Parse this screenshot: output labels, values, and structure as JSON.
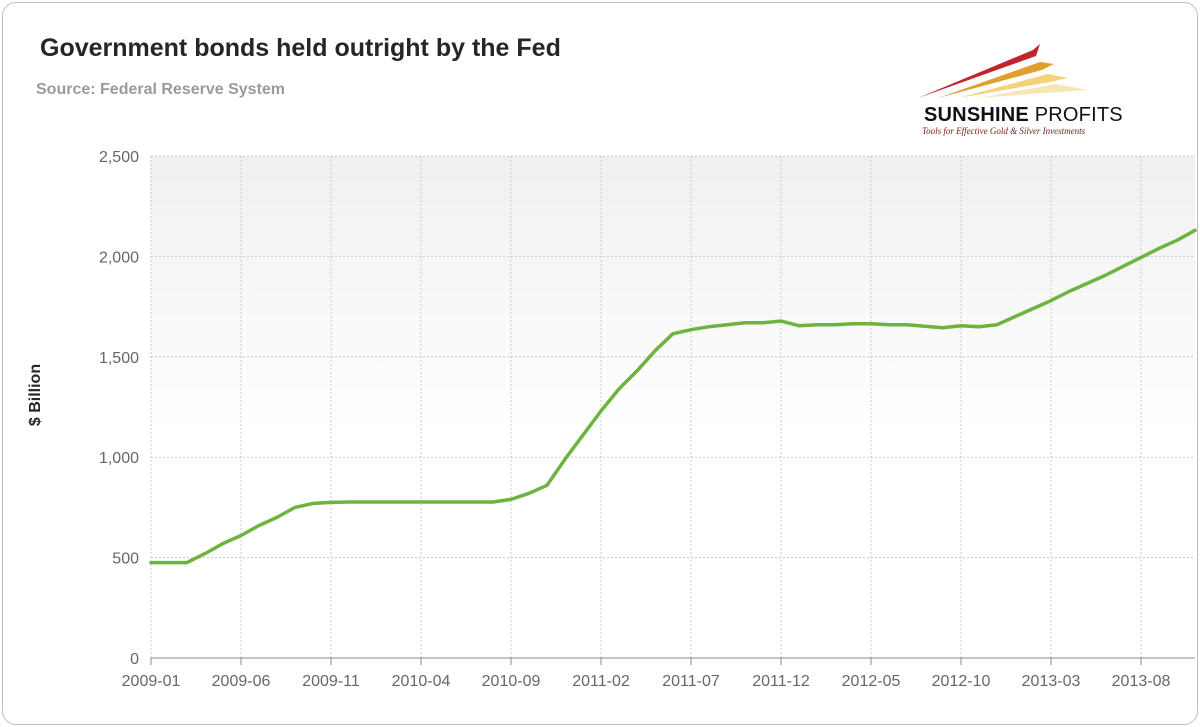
{
  "chart_data": {
    "type": "line",
    "title": "Government bonds held outright by the Fed",
    "subtitle": "Source: Federal Reserve System",
    "xlabel": "",
    "ylabel": "$ Billion",
    "ylim": [
      0,
      2500
    ],
    "yticks": [
      0,
      500,
      1000,
      1500,
      2000,
      2500
    ],
    "ytick_labels": [
      "0",
      "500",
      "1,000",
      "1,500",
      "2,000",
      "2,500"
    ],
    "xticks": [
      "2009-01",
      "2009-06",
      "2009-11",
      "2010-04",
      "2010-09",
      "2011-02",
      "2011-07",
      "2011-12",
      "2012-05",
      "2012-10",
      "2013-03",
      "2013-08"
    ],
    "grid": true,
    "legend": "none",
    "line_color": "#6db33f",
    "series": [
      {
        "x": [
          "2009-01",
          "2009-02",
          "2009-03",
          "2009-04",
          "2009-05",
          "2009-06",
          "2009-07",
          "2009-08",
          "2009-09",
          "2009-10",
          "2009-11",
          "2009-12",
          "2010-01",
          "2010-02",
          "2010-03",
          "2010-04",
          "2010-05",
          "2010-06",
          "2010-07",
          "2010-08",
          "2010-09",
          "2010-10",
          "2010-11",
          "2010-12",
          "2011-01",
          "2011-02",
          "2011-03",
          "2011-04",
          "2011-05",
          "2011-06",
          "2011-07",
          "2011-08",
          "2011-09",
          "2011-10",
          "2011-11",
          "2011-12",
          "2012-01",
          "2012-02",
          "2012-03",
          "2012-04",
          "2012-05",
          "2012-06",
          "2012-07",
          "2012-08",
          "2012-09",
          "2012-10",
          "2012-11",
          "2012-12",
          "2013-01",
          "2013-02",
          "2013-03",
          "2013-04",
          "2013-05",
          "2013-06",
          "2013-07",
          "2013-08",
          "2013-09",
          "2013-10",
          "2013-11"
        ],
        "values": [
          475,
          475,
          475,
          520,
          570,
          610,
          660,
          700,
          750,
          770,
          775,
          777,
          777,
          777,
          777,
          777,
          777,
          777,
          777,
          777,
          790,
          820,
          860,
          990,
          1110,
          1230,
          1340,
          1430,
          1530,
          1615,
          1635,
          1650,
          1660,
          1670,
          1670,
          1678,
          1655,
          1660,
          1660,
          1665,
          1665,
          1660,
          1660,
          1652,
          1645,
          1655,
          1650,
          1660,
          1700,
          1740,
          1780,
          1825,
          1865,
          1905,
          1950,
          1995,
          2040,
          2080,
          2130
        ]
      }
    ]
  },
  "logo": {
    "brand_strong": "SUNSHINE",
    "brand_light": "PROFITS",
    "tagline": "Tools for Effective Gold & Silver Investments"
  }
}
